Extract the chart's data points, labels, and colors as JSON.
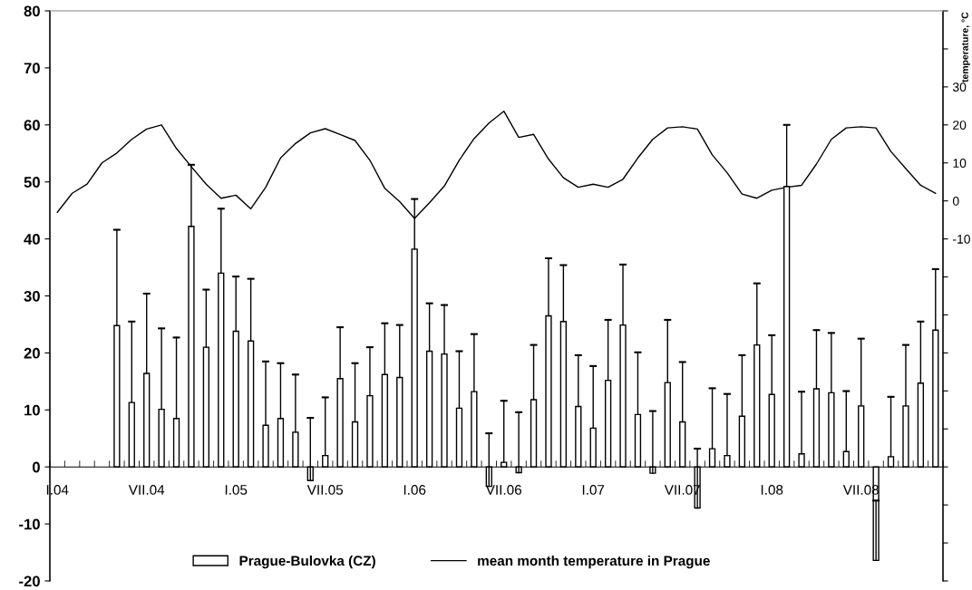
{
  "chart_data": {
    "type": "bar",
    "categories": [
      "I.04",
      null,
      null,
      null,
      null,
      null,
      "VII.04",
      null,
      null,
      null,
      null,
      null,
      "I.05",
      null,
      null,
      null,
      null,
      null,
      "VII.05",
      null,
      null,
      null,
      null,
      null,
      "I.06",
      null,
      null,
      null,
      null,
      null,
      "VII.06",
      null,
      null,
      null,
      null,
      null,
      "I.07",
      null,
      null,
      null,
      null,
      null,
      "VII.07",
      null,
      null,
      null,
      null,
      null,
      "I.08",
      null,
      null,
      null,
      null,
      null,
      "VII.08",
      null,
      null,
      null,
      null,
      null
    ],
    "series": [
      {
        "name": "Prague-Bulovka (CZ)",
        "color": "#ffffff",
        "values": [
          null,
          null,
          null,
          null,
          24.8,
          11.3,
          16.4,
          10.1,
          8.5,
          42.2,
          21.0,
          34.0,
          23.8,
          22.1,
          7.3,
          8.5,
          6.1,
          -2.4,
          2.0,
          15.5,
          7.9,
          12.5,
          16.2,
          15.7,
          38.2,
          20.3,
          19.8,
          10.3,
          13.2,
          -3.4,
          0.8,
          -1.0,
          11.8,
          26.5,
          25.5,
          10.6,
          6.8,
          15.2,
          24.9,
          9.2,
          -1.1,
          14.8,
          7.9,
          -7.2,
          3.2,
          2.0,
          8.9,
          21.4,
          12.7,
          49.2,
          2.3,
          13.7,
          13.0,
          2.7,
          10.7,
          -16.4,
          1.8,
          10.7,
          14.7,
          24.0
        ],
        "errors": [
          null,
          null,
          null,
          null,
          [
            24.8,
            41.6
          ],
          [
            11.3,
            25.5
          ],
          [
            16.4,
            30.4
          ],
          [
            10.1,
            24.3
          ],
          [
            8.5,
            22.7
          ],
          [
            42.2,
            53.0
          ],
          [
            21.0,
            31.1
          ],
          [
            34.0,
            45.3
          ],
          [
            23.8,
            33.4
          ],
          [
            22.1,
            33.0
          ],
          [
            7.3,
            18.5
          ],
          [
            8.5,
            18.2
          ],
          [
            6.1,
            16.2
          ],
          [
            -2.4,
            8.6
          ],
          [
            2.0,
            12.2
          ],
          [
            15.5,
            24.5
          ],
          [
            7.9,
            18.2
          ],
          [
            12.5,
            21.0
          ],
          [
            16.2,
            25.2
          ],
          [
            15.7,
            24.9
          ],
          [
            38.2,
            47.0
          ],
          [
            20.3,
            28.7
          ],
          [
            19.8,
            28.4
          ],
          [
            10.3,
            20.3
          ],
          [
            13.2,
            23.3
          ],
          [
            -3.4,
            5.9
          ],
          [
            0.8,
            11.6
          ],
          [
            -1.0,
            9.6
          ],
          [
            11.8,
            21.4
          ],
          [
            26.5,
            36.6
          ],
          [
            25.5,
            35.4
          ],
          [
            10.6,
            19.6
          ],
          [
            6.8,
            17.7
          ],
          [
            15.2,
            25.8
          ],
          [
            24.9,
            35.5
          ],
          [
            9.2,
            20.1
          ],
          [
            -1.1,
            9.8
          ],
          [
            14.8,
            25.8
          ],
          [
            7.9,
            18.4
          ],
          [
            -7.2,
            3.2
          ],
          [
            3.2,
            13.8
          ],
          [
            2.0,
            12.8
          ],
          [
            8.9,
            19.6
          ],
          [
            21.4,
            32.2
          ],
          [
            12.7,
            23.1
          ],
          [
            49.2,
            60.0
          ],
          [
            2.3,
            13.2
          ],
          [
            13.7,
            24.0
          ],
          [
            13.0,
            23.5
          ],
          [
            2.7,
            13.3
          ],
          [
            10.7,
            22.5
          ],
          [
            -16.4,
            -5.9
          ],
          [
            1.8,
            12.3
          ],
          [
            10.7,
            21.4
          ],
          [
            14.7,
            25.5
          ],
          [
            24.0,
            34.7
          ]
        ]
      },
      {
        "name": "mean month temperature in Prague",
        "type": "line",
        "axis": "y2",
        "color": "#000000",
        "values": [
          -3.0,
          2.0,
          4.4,
          10.0,
          12.6,
          16.2,
          18.9,
          20.0,
          13.8,
          9.0,
          4.4,
          0.7,
          1.5,
          -2.1,
          3.6,
          11.3,
          15.1,
          17.9,
          19.0,
          17.5,
          15.9,
          10.7,
          3.3,
          -0.2,
          -4.6,
          -0.5,
          3.9,
          10.7,
          16.4,
          20.5,
          23.6,
          16.7,
          17.5,
          11.0,
          6.1,
          3.6,
          4.4,
          3.6,
          5.7,
          11.3,
          16.2,
          19.2,
          19.5,
          18.9,
          12.1,
          7.4,
          1.8,
          0.7,
          2.8,
          3.6,
          4.1,
          9.7,
          16.2,
          19.2,
          19.5,
          19.2,
          13.0,
          8.5,
          4.1,
          2.0
        ]
      }
    ],
    "y2label": "temperature, °C",
    "ylim": [
      -20,
      80
    ],
    "yticks": [
      -20,
      -10,
      0,
      10,
      20,
      30,
      40,
      50,
      60,
      70,
      80
    ],
    "y2lim": [
      -100,
      50
    ],
    "y2ticks": [
      {
        "value": -100,
        "label": null
      },
      {
        "value": -90,
        "label": null
      },
      {
        "value": -80,
        "label": null
      },
      {
        "value": -70,
        "label": null
      },
      {
        "value": -60,
        "label": null
      },
      {
        "value": -50,
        "label": null
      },
      {
        "value": -40,
        "label": null
      },
      {
        "value": -30,
        "label": null
      },
      {
        "value": -20,
        "label": null
      },
      -10,
      0,
      10,
      20,
      30,
      {
        "value": 40,
        "label": null
      },
      {
        "value": 50,
        "label": null
      }
    ],
    "grid": false,
    "legend": "bottom",
    "marker": "none",
    "line_style": "solid"
  }
}
